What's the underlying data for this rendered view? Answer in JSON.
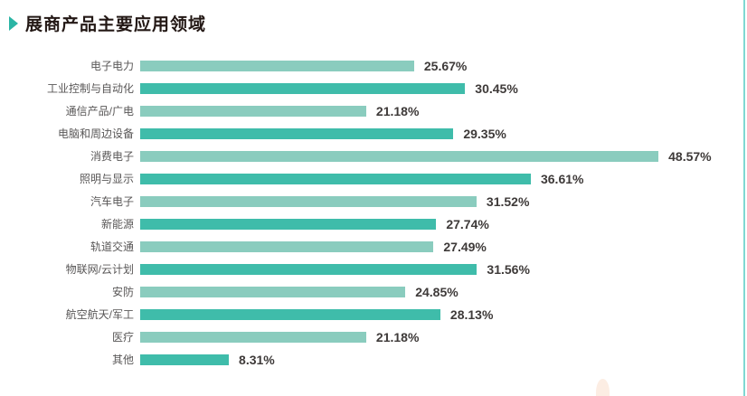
{
  "header": {
    "title": "展商产品主要应用领域",
    "marker_color": "#2bb5a5"
  },
  "chart_data": {
    "type": "bar",
    "orientation": "horizontal",
    "title": "展商产品主要应用领域",
    "categories": [
      "电子电力",
      "工业控制与自动化",
      "通信产品/广电",
      "电脑和周边设备",
      "消费电子",
      "照明与显示",
      "汽车电子",
      "新能源",
      "轨道交通",
      "物联网/云计划",
      "安防",
      "航空航天/军工",
      "医疗",
      "其他"
    ],
    "values": [
      25.67,
      30.45,
      21.18,
      29.35,
      48.57,
      36.61,
      31.52,
      27.74,
      27.49,
      31.56,
      24.85,
      28.13,
      21.18,
      8.31
    ],
    "value_labels": [
      "25.67%",
      "30.45%",
      "21.18%",
      "29.35%",
      "48.57%",
      "36.61%",
      "31.52%",
      "27.74%",
      "27.49%",
      "31.56%",
      "24.85%",
      "28.13%",
      "21.18%",
      "8.31%"
    ],
    "unit": "%",
    "xlim": [
      0,
      50
    ],
    "grid": false,
    "legend": false,
    "colors": {
      "odd_bar": "#8accbe",
      "even_bar": "#3fbcaa"
    }
  },
  "page": {
    "edge_rule_color": "#7fd8d2"
  }
}
